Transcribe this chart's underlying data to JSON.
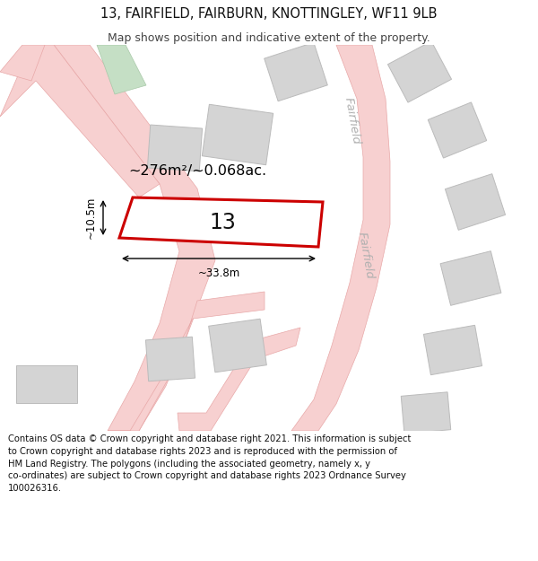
{
  "title": "13, FAIRFIELD, FAIRBURN, KNOTTINGLEY, WF11 9LB",
  "subtitle": "Map shows position and indicative extent of the property.",
  "footer": "Contains OS data © Crown copyright and database right 2021. This information is subject\nto Crown copyright and database rights 2023 and is reproduced with the permission of\nHM Land Registry. The polygons (including the associated geometry, namely x, y\nco-ordinates) are subject to Crown copyright and database rights 2023 Ordnance Survey\n100026316.",
  "map_bg": "#ffffff",
  "road_fill": "#f7d0d0",
  "road_edge": "#e8a8a8",
  "building_fill": "#d4d4d4",
  "building_edge": "#bbbbbb",
  "highlight_fill": "#ffffff",
  "highlight_edge": "#cc0000",
  "green_fill": "#c5dfc5",
  "green_edge": "#a8c8a8",
  "road_label_color": "#b0b0b0",
  "area_label": "~276m²/~0.068ac.",
  "width_label": "~33.8m",
  "height_label": "~10.5m",
  "plot_number": "13",
  "title_fontsize": 10.5,
  "subtitle_fontsize": 9,
  "footer_fontsize": 7.2
}
